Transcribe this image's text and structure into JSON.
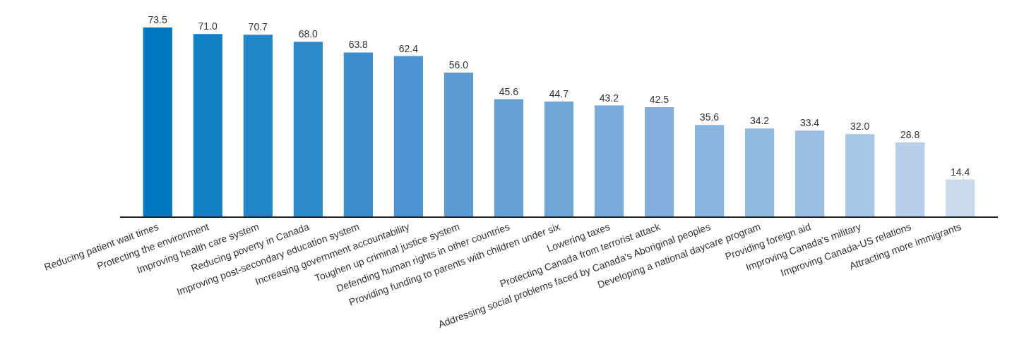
{
  "chart_data": {
    "type": "bar",
    "categories": [
      "Reducing patient wait times",
      "Protecting the environment",
      "Improving health care system",
      "Reducing poverty in Canada",
      "Improving post-secondary education system",
      "Increasing government accountability",
      "Toughen up criminal justice system",
      "Defending human rights in other countries",
      "Providing funding to parents with children under six",
      "Lowering taxes",
      "Protecting Canada from terrorist attack",
      "Addressing social problems faced by Canada's Aboriginal peoples",
      "Developing a national daycare program",
      "Providing foreign aid",
      "Improving Canada's military",
      "Improving Canada-US relations",
      "Attracting more immigrants"
    ],
    "values": [
      73.5,
      71.0,
      70.7,
      68.0,
      63.8,
      62.4,
      56.0,
      45.6,
      44.7,
      43.2,
      42.5,
      35.6,
      34.2,
      33.4,
      32.0,
      28.8,
      14.4
    ],
    "value_labels": [
      "73.5",
      "71.0",
      "70.7",
      "68.0",
      "63.8",
      "62.4",
      "56.0",
      "45.6",
      "44.7",
      "43.2",
      "42.5",
      "35.6",
      "34.2",
      "33.4",
      "32.0",
      "28.8",
      "14.4"
    ],
    "colors": [
      "#0078c1",
      "#1182c6",
      "#2187c8",
      "#2f8acb",
      "#3b8dcc",
      "#4a93cf",
      "#5b9ad3",
      "#66a0d5",
      "#6fa5d7",
      "#78aada",
      "#80afdc",
      "#89b4de",
      "#92b9e0",
      "#9bbfe2",
      "#a8c6e5",
      "#b8cfea",
      "#c9daee"
    ],
    "tick_labels": "x"
  }
}
